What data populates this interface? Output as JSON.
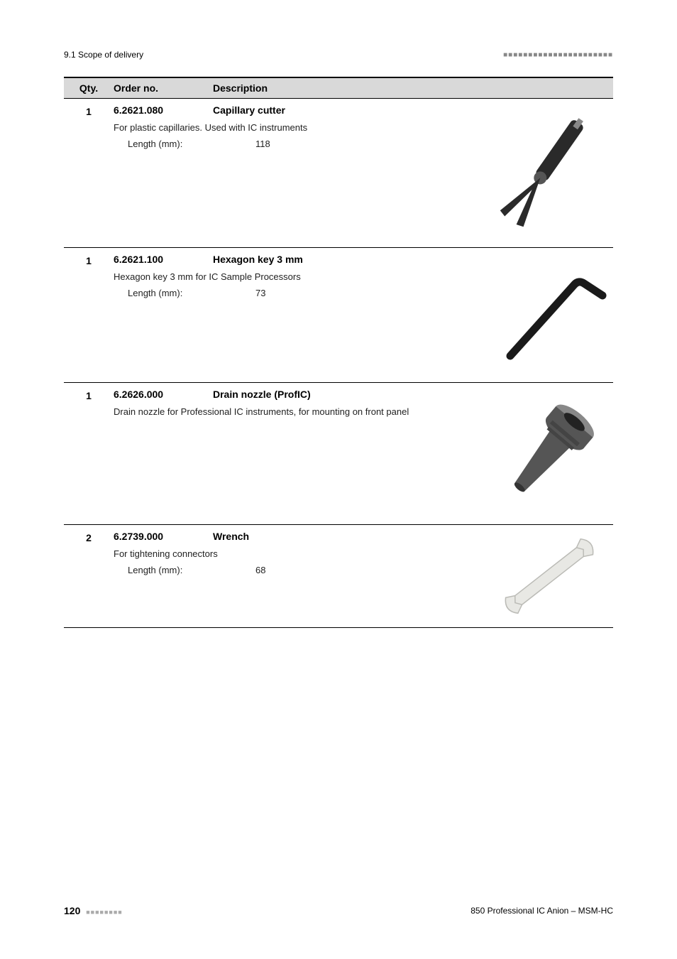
{
  "header": {
    "section": "9.1 Scope of delivery",
    "dots": "■■■■■■■■■■■■■■■■■■■■■■"
  },
  "table": {
    "columns": {
      "qty": "Qty.",
      "order": "Order no.",
      "desc": "Description"
    }
  },
  "entries": [
    {
      "qty": "1",
      "order_no": "6.2621.080",
      "title": "Capillary cutter",
      "description": "For plastic capillaries. Used with IC instruments",
      "spec_label": "Length (mm):",
      "spec_value": "118",
      "image_type": "cutter",
      "min_height": 210
    },
    {
      "qty": "1",
      "order_no": "6.2621.100",
      "title": "Hexagon key 3 mm",
      "description": "Hexagon key 3 mm for IC Sample Processors",
      "spec_label": "Length (mm):",
      "spec_value": "73",
      "image_type": "hexkey",
      "min_height": 190
    },
    {
      "qty": "1",
      "order_no": "6.2626.000",
      "title": "Drain nozzle (ProfIC)",
      "description": "Drain nozzle for Professional IC instruments, for mounting on front panel",
      "spec_label": "",
      "spec_value": "",
      "image_type": "nozzle",
      "min_height": 200
    },
    {
      "qty": "2",
      "order_no": "6.2739.000",
      "title": "Wrench",
      "description": "For tightening connectors",
      "spec_label": "Length (mm):",
      "spec_value": "68",
      "image_type": "wrench",
      "min_height": 130
    }
  ],
  "footer": {
    "page": "120",
    "dots": "■■■■■■■■",
    "right": "850 Professional IC Anion – MSM-HC"
  },
  "svg": {
    "cutter_fill": "#2a2a2a",
    "hexkey_fill": "#1a1a1a",
    "nozzle_fill": "#555555",
    "nozzle_hilite": "#888888",
    "wrench_fill": "#e8e8e4",
    "wrench_stroke": "#bbbbb6"
  }
}
